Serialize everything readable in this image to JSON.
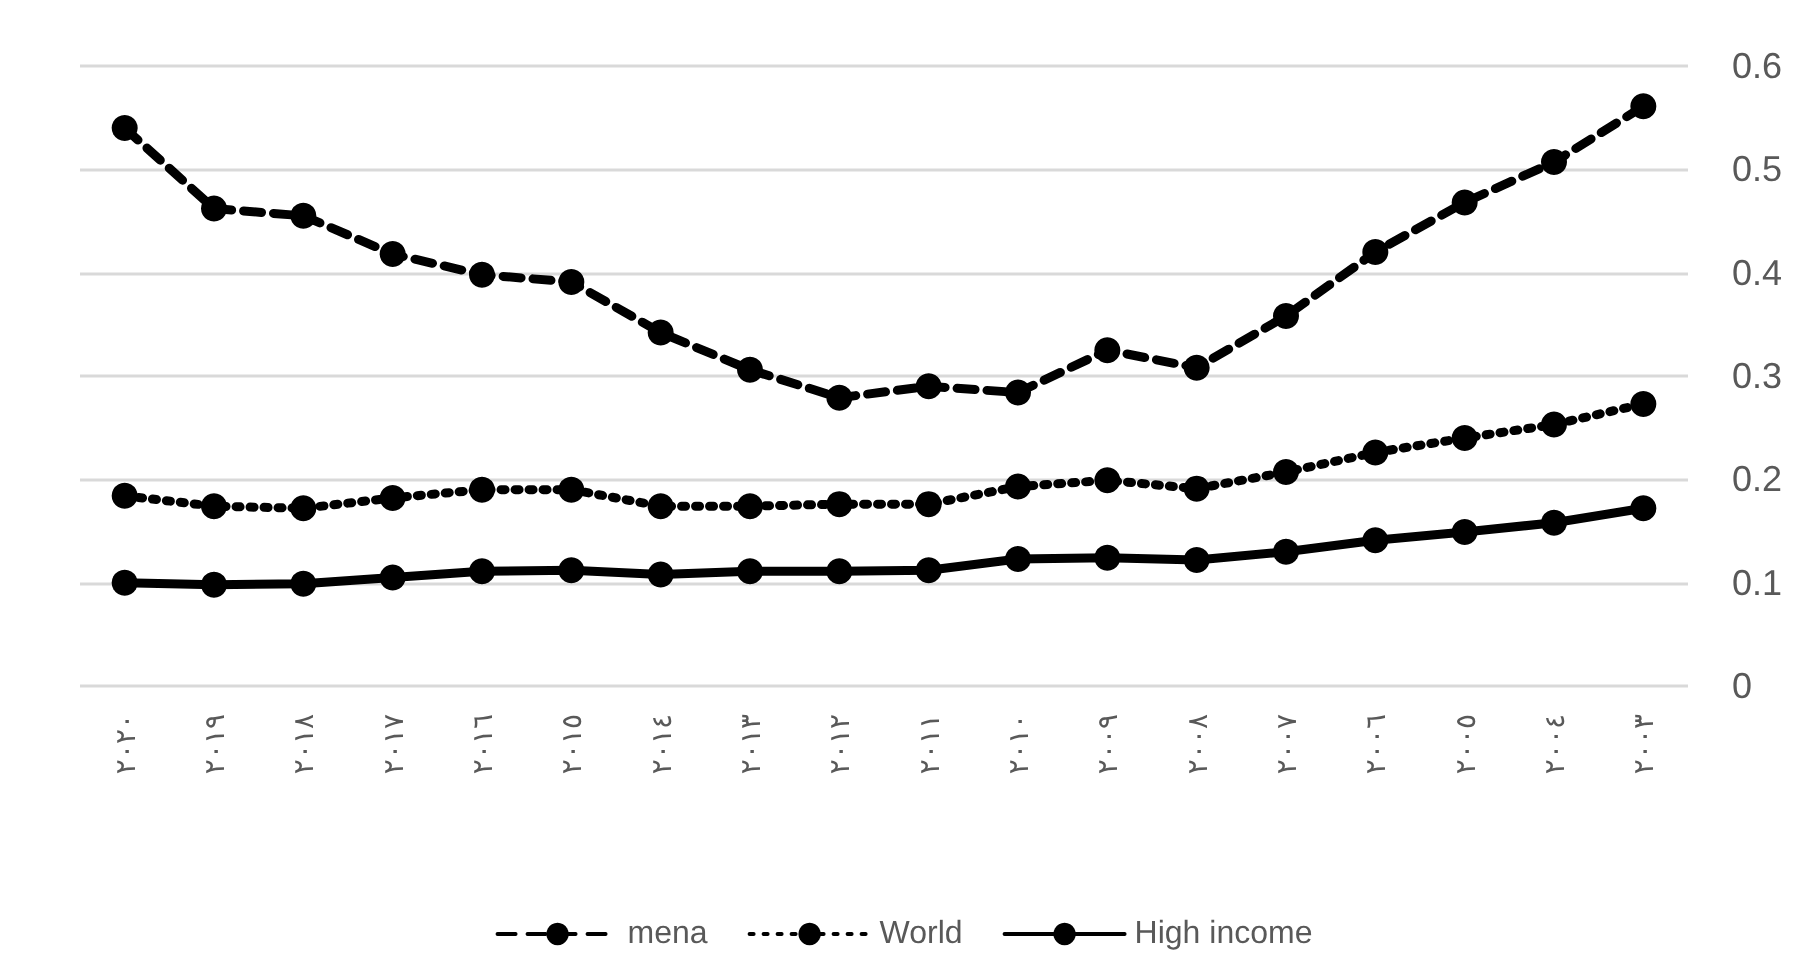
{
  "chart_data": {
    "type": "line",
    "categories": [
      "٢٠٢٠",
      "٢٠١٩",
      "٢٠١٨",
      "٢٠١٧",
      "٢٠١٦",
      "٢٠١٥",
      "٢٠١٤",
      "٢٠١٣",
      "٢٠١٢",
      "٢٠١١",
      "٢٠١٠",
      "٢٠٠٩",
      "٢٠٠٨",
      "٢٠٠٧",
      "٢٠٠٦",
      "٢٠٠٥",
      "٢٠٠٤",
      "٢٠٠٣"
    ],
    "series": [
      {
        "name": "mena",
        "color": "#000000",
        "line_style": "dashed",
        "values": [
          0.54,
          0.462,
          0.455,
          0.418,
          0.398,
          0.391,
          0.342,
          0.306,
          0.279,
          0.29,
          0.284,
          0.325,
          0.308,
          0.358,
          0.42,
          0.468,
          0.507,
          0.561
        ]
      },
      {
        "name": "World",
        "color": "#000000",
        "line_style": "dotted",
        "values": [
          0.184,
          0.174,
          0.172,
          0.182,
          0.19,
          0.19,
          0.174,
          0.174,
          0.176,
          0.176,
          0.193,
          0.199,
          0.191,
          0.207,
          0.226,
          0.24,
          0.253,
          0.273
        ]
      },
      {
        "name": "High income",
        "color": "#000000",
        "line_style": "solid",
        "values": [
          0.1,
          0.098,
          0.099,
          0.105,
          0.111,
          0.112,
          0.108,
          0.111,
          0.111,
          0.112,
          0.123,
          0.124,
          0.122,
          0.13,
          0.141,
          0.149,
          0.158,
          0.172
        ]
      }
    ],
    "ylim": [
      0,
      0.6
    ],
    "yticks": [
      0,
      0.1,
      0.2,
      0.3,
      0.4,
      0.5,
      0.6
    ],
    "grid": "y",
    "legend": "bottom",
    "marker": "circle"
  }
}
